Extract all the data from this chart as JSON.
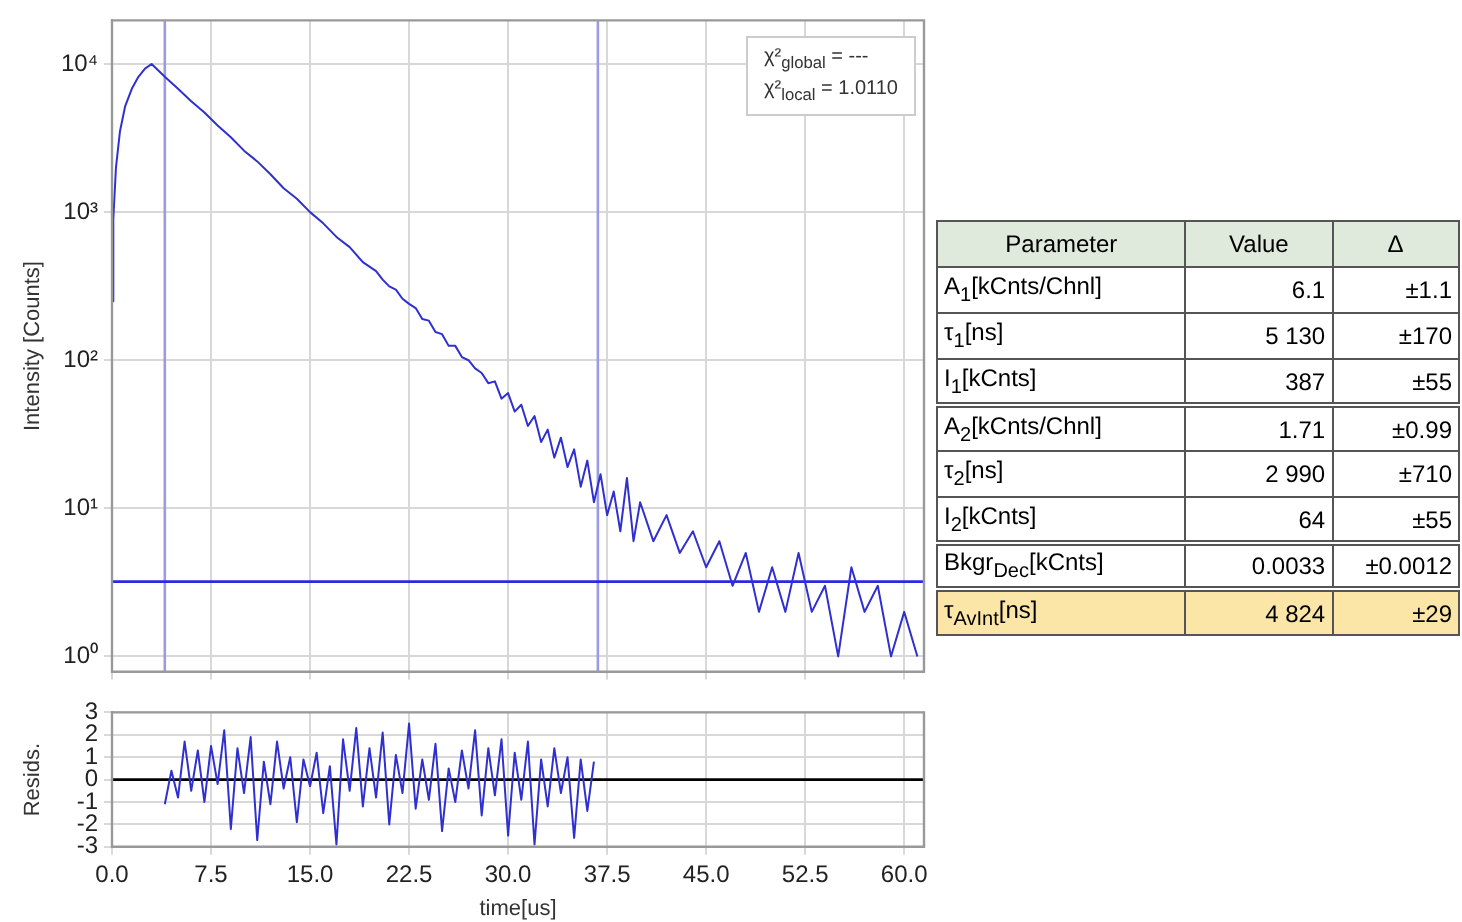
{
  "chart_data": [
    {
      "type": "line",
      "ylabel": "Intensity [Counts]",
      "log": "y",
      "grid": true,
      "legend": false,
      "tick_labels": "y",
      "marker": "none",
      "line_style": "solid",
      "xlim": [
        0,
        61.5
      ],
      "ylim": [
        0.79,
        19700
      ],
      "xticks": [
        {
          "value": 0,
          "label": null
        },
        {
          "value": 7.5,
          "label": null
        },
        {
          "value": 15,
          "label": null
        },
        {
          "value": 22.5,
          "label": null
        },
        {
          "value": 30,
          "label": null
        },
        {
          "value": 37.5,
          "label": null
        },
        {
          "value": 45,
          "label": null
        },
        {
          "value": 52.5,
          "label": null
        },
        {
          "value": 60,
          "label": null
        }
      ],
      "yticks": [
        {
          "value": 1,
          "label": "10⁰"
        },
        {
          "value": 10,
          "label": "10¹"
        },
        {
          "value": 100,
          "label": "10²"
        },
        {
          "value": 1000,
          "label": "10³"
        },
        {
          "value": 10000,
          "label": "10⁴"
        }
      ],
      "ref_lines": [
        {
          "axis": "x",
          "value": 4,
          "color": "#9a9ae8"
        },
        {
          "axis": "x",
          "value": 36.8,
          "color": "#9a9ae8"
        },
        {
          "axis": "y",
          "value": 3.2,
          "color": "#2a2ae0"
        }
      ],
      "annotations": [
        "χ²$_{global}$ = ---",
        "χ²$_{local}$ = 1.0110"
      ],
      "series": [
        {
          "color": "#3030d0",
          "x": [
            0,
            0.1,
            0.3,
            0.6,
            1,
            1.5,
            2,
            2.5,
            3,
            4,
            5,
            6,
            7,
            8,
            9,
            10,
            11,
            12,
            13,
            14,
            15,
            16,
            17,
            18,
            19,
            20,
            20.5,
            21,
            21.5,
            22,
            22.5,
            23,
            23.5,
            24,
            24.5,
            25,
            25.5,
            26,
            26.5,
            27,
            27.5,
            28,
            28.5,
            29,
            29.5,
            30,
            30.5,
            31,
            31.5,
            32,
            32.5,
            33,
            33.5,
            34,
            34.5,
            35,
            35.5,
            36,
            36.5,
            37,
            37.5,
            38,
            38.5,
            39,
            39.5,
            40,
            41,
            42,
            43,
            44,
            45,
            46,
            47,
            48,
            49,
            50,
            51,
            52,
            53,
            54,
            55,
            56,
            57,
            58,
            59,
            60,
            61
          ],
          "values": [
            250,
            900,
            2000,
            3500,
            5200,
            6800,
            8200,
            9300,
            10000,
            8200,
            6800,
            5600,
            4700,
            3850,
            3200,
            2600,
            2200,
            1800,
            1450,
            1230,
            1000,
            840,
            680,
            580,
            460,
            400,
            350,
            315,
            300,
            260,
            240,
            225,
            190,
            185,
            155,
            150,
            125,
            125,
            105,
            100,
            88,
            82,
            70,
            72,
            55,
            60,
            45,
            50,
            36,
            42,
            28,
            34,
            22,
            30,
            19,
            25,
            14,
            21,
            11,
            17,
            9,
            13,
            7,
            16,
            6,
            11,
            6,
            9,
            5,
            7,
            4,
            6,
            3,
            5,
            2,
            4,
            2,
            5,
            2,
            3,
            1,
            4,
            2,
            3,
            1,
            2,
            1
          ]
        }
      ]
    },
    {
      "type": "line",
      "ylabel": "Resids.",
      "xlabel": "time[us]",
      "grid": true,
      "legend": false,
      "marker": "none",
      "line_style": "solid",
      "xlim": [
        0,
        61.5
      ],
      "ylim": [
        -3,
        3
      ],
      "xticks": [
        {
          "value": 0,
          "label": "0.0"
        },
        {
          "value": 7.5,
          "label": "7.5"
        },
        {
          "value": 15,
          "label": "15.0"
        },
        {
          "value": 22.5,
          "label": "22.5"
        },
        {
          "value": 30,
          "label": "30.0"
        },
        {
          "value": 37.5,
          "label": "37.5"
        },
        {
          "value": 45,
          "label": "45.0"
        },
        {
          "value": 52.5,
          "label": "52.5"
        },
        {
          "value": 60,
          "label": "60.0"
        }
      ],
      "yticks": [
        -3,
        -2,
        -1,
        0,
        1,
        2,
        3
      ],
      "ref_lines": [
        {
          "axis": "y",
          "value": 0,
          "color": "#000000"
        }
      ],
      "series": [
        {
          "color": "#3030d0",
          "x": [
            4,
            4.5,
            5,
            5.5,
            6,
            6.5,
            7,
            7.5,
            8,
            8.5,
            9,
            9.5,
            10,
            10.5,
            11,
            11.5,
            12,
            12.5,
            13,
            13.5,
            14,
            14.5,
            15,
            15.5,
            16,
            16.5,
            17,
            17.5,
            18,
            18.5,
            19,
            19.5,
            20,
            20.5,
            21,
            21.5,
            22,
            22.5,
            23,
            23.5,
            24,
            24.5,
            25,
            25.5,
            26,
            26.5,
            27,
            27.5,
            28,
            28.5,
            29,
            29.5,
            30,
            30.5,
            31,
            31.5,
            32,
            32.5,
            33,
            33.5,
            34,
            34.5,
            35,
            35.5,
            36,
            36.5
          ],
          "values": [
            -1.1,
            0.4,
            -0.8,
            1.7,
            -0.5,
            1.3,
            -1.0,
            1.5,
            -0.2,
            2.2,
            -2.2,
            1.4,
            -0.6,
            1.9,
            -2.7,
            0.8,
            -1.1,
            1.7,
            -0.4,
            1.0,
            -1.9,
            0.9,
            -0.3,
            1.2,
            -1.5,
            0.6,
            -2.9,
            1.8,
            -0.5,
            2.3,
            -1.2,
            1.4,
            -0.8,
            2.1,
            -2.0,
            1.1,
            -0.6,
            2.5,
            -1.3,
            0.9,
            -0.9,
            1.6,
            -2.3,
            0.5,
            -1.0,
            1.3,
            -0.4,
            2.2,
            -1.6,
            1.4,
            -0.7,
            1.8,
            -2.5,
            1.2,
            -0.9,
            1.7,
            -2.9,
            0.9,
            -1.2,
            1.4,
            -0.6,
            1.0,
            -2.6,
            0.9,
            -1.4,
            0.8
          ]
        }
      ]
    },
    {
      "type": "other",
      "annotations": [
        "Parameter",
        "Value",
        "Δ",
        "A$_{1}$[kCnts/Chnl]",
        "6.1",
        "±1.1",
        "τ$_{1}$[ns]",
        "5 130",
        "±170",
        "I$_{1}$[kCnts]",
        "387",
        "±55",
        "A$_{2}$[kCnts/Chnl]",
        "1.71",
        "±0.99",
        "τ$_{2}$[ns]",
        "2 990",
        "±710",
        "I$_{2}$[kCnts]",
        "64",
        "±55",
        "Bkgr$_{Dec}$[kCnts]",
        "0.0033",
        "±0.0012",
        "τ$_{AvInt}$[ns]",
        "4 824",
        "±29"
      ]
    }
  ]
}
